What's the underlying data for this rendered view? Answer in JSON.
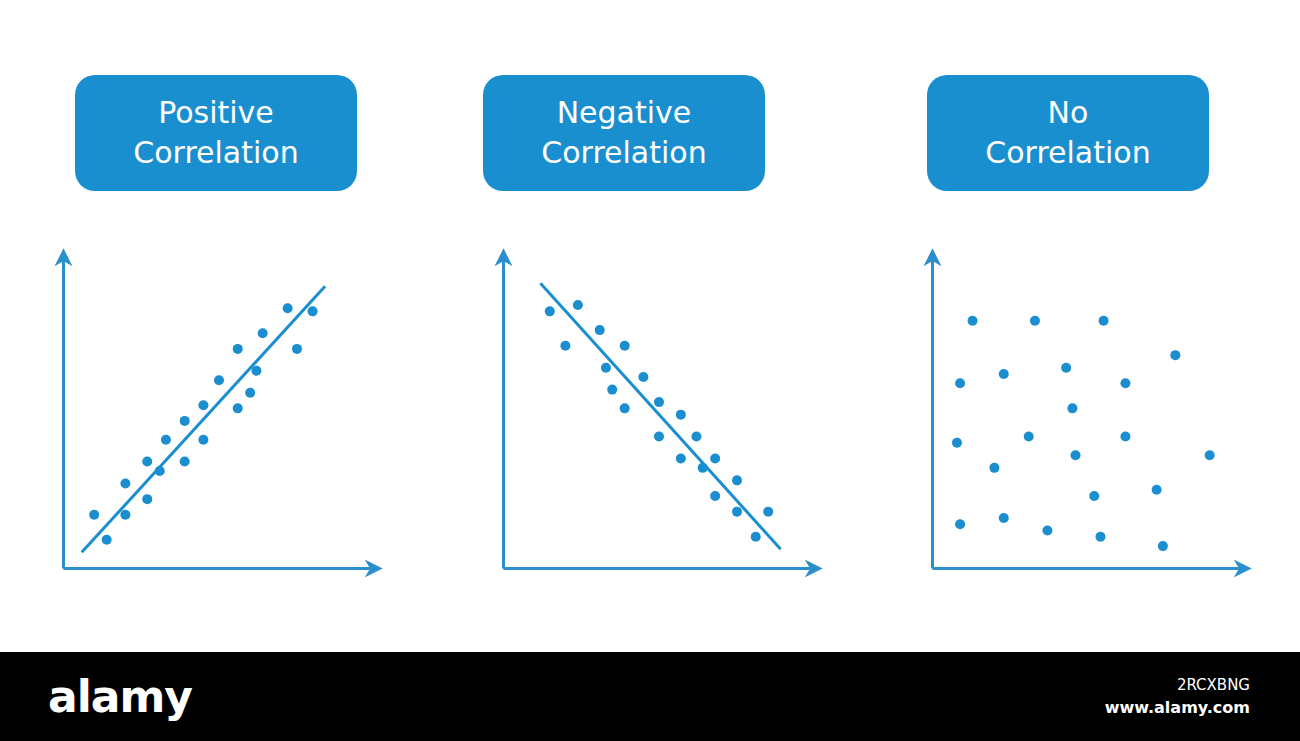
{
  "chart_data": [
    {
      "type": "scatter",
      "title": "Positive Correlation",
      "color": "#1b8ed0",
      "marker": "circle",
      "tick_labels": false,
      "xlim": [
        0,
        10
      ],
      "ylim": [
        0,
        10
      ],
      "x": [
        1.0,
        1.4,
        2.0,
        2.0,
        2.7,
        2.7,
        3.1,
        3.3,
        3.9,
        3.9,
        4.5,
        4.5,
        5.0,
        5.6,
        5.6,
        6.0,
        6.2,
        6.4,
        7.2,
        7.5,
        8.0
      ],
      "y": [
        1.7,
        0.9,
        1.7,
        2.7,
        2.2,
        3.4,
        3.1,
        4.1,
        3.4,
        4.7,
        4.1,
        5.2,
        6.0,
        5.1,
        7.0,
        5.6,
        6.3,
        7.5,
        8.3,
        7.0,
        8.2
      ],
      "trend": {
        "x": [
          0.6,
          8.4
        ],
        "y": [
          0.5,
          9.0
        ]
      }
    },
    {
      "type": "scatter",
      "title": "Negative Correlation",
      "color": "#1b8ed0",
      "marker": "circle",
      "tick_labels": false,
      "xlim": [
        0,
        10
      ],
      "ylim": [
        0,
        10
      ],
      "x": [
        1.5,
        2.4,
        2.0,
        3.1,
        3.9,
        3.3,
        3.5,
        4.5,
        3.9,
        5.0,
        5.0,
        5.7,
        6.2,
        5.7,
        6.4,
        6.8,
        6.8,
        7.5,
        7.5,
        8.5,
        8.1
      ],
      "y": [
        8.2,
        8.4,
        7.1,
        7.6,
        7.1,
        6.4,
        5.7,
        6.1,
        5.1,
        5.3,
        4.2,
        4.9,
        4.2,
        3.5,
        3.2,
        3.5,
        2.3,
        2.8,
        1.8,
        1.8,
        1.0
      ],
      "trend": {
        "x": [
          1.2,
          8.9
        ],
        "y": [
          9.1,
          0.6
        ]
      }
    },
    {
      "type": "scatter",
      "title": "No Correlation",
      "color": "#1b8ed0",
      "marker": "circle",
      "tick_labels": false,
      "xlim": [
        0,
        10
      ],
      "ylim": [
        0,
        10
      ],
      "x": [
        1.3,
        3.3,
        5.5,
        7.8,
        0.9,
        2.3,
        4.3,
        6.2,
        4.5,
        0.8,
        3.1,
        6.2,
        4.6,
        8.9,
        2.0,
        5.2,
        7.2,
        0.9,
        2.3,
        3.7,
        5.4,
        7.4
      ],
      "y": [
        7.9,
        7.9,
        7.9,
        6.8,
        5.9,
        6.2,
        6.4,
        5.9,
        5.1,
        4.0,
        4.2,
        4.2,
        3.6,
        3.6,
        3.2,
        2.3,
        2.5,
        1.4,
        1.6,
        1.2,
        1.0,
        0.7
      ]
    }
  ],
  "footer": {
    "brand": "alamy",
    "image_id": "2RCXBNG",
    "url": "www.alamy.com"
  }
}
